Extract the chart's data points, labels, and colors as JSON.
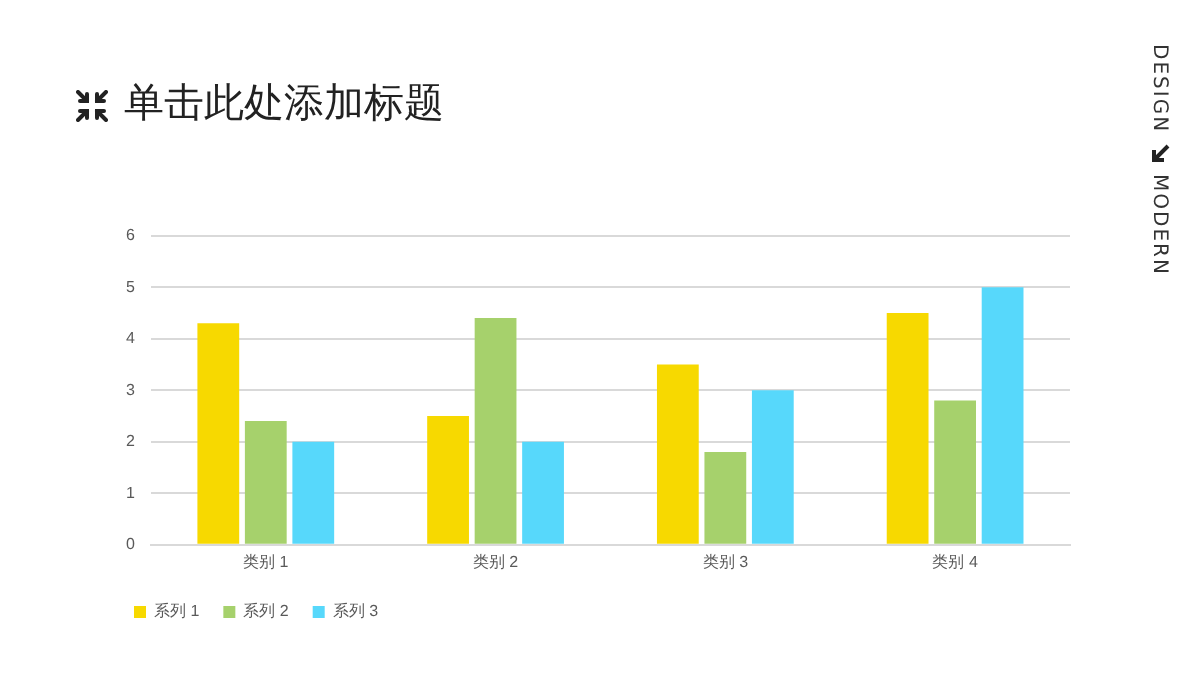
{
  "chart_data": {
    "type": "bar",
    "title": "单击此处添加标题",
    "categories": [
      "类别 1",
      "类别 2",
      "类别 3",
      "类别 4"
    ],
    "series": [
      {
        "name": "系列 1",
        "color": "#f7d900",
        "values": [
          4.3,
          2.5,
          3.5,
          4.5
        ]
      },
      {
        "name": "系列 2",
        "color": "#a6d16c",
        "values": [
          2.4,
          4.4,
          1.8,
          2.8
        ]
      },
      {
        "name": "系列 3",
        "color": "#57d8fb",
        "values": [
          2,
          2,
          3,
          5
        ]
      }
    ],
    "ylim": [
      0,
      6
    ],
    "yticks": [
      0,
      1,
      2,
      3,
      4,
      5,
      6
    ],
    "grid": "y",
    "legend": "bottom left",
    "annotations": [
      "DESIGN",
      "MODERN"
    ]
  }
}
